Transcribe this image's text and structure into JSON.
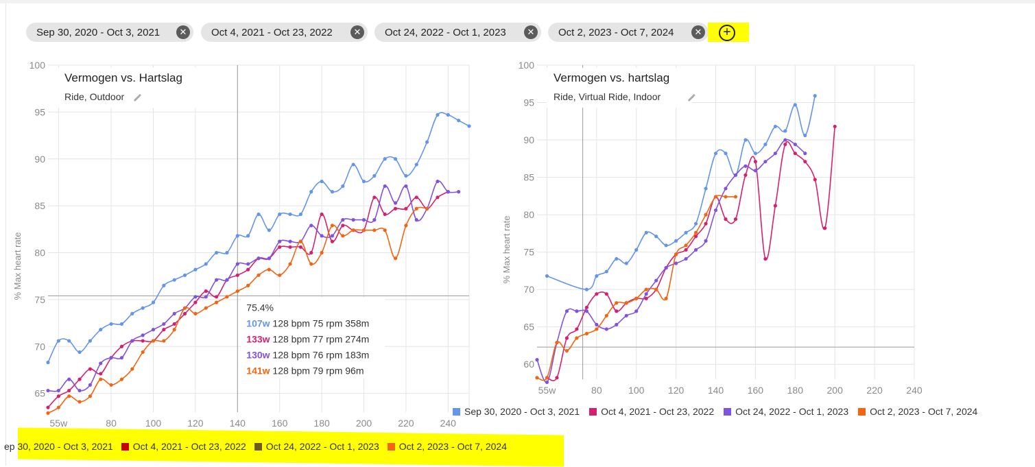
{
  "filters": {
    "chips": [
      {
        "label": "Sep 30, 2020 - Oct 3, 2021"
      },
      {
        "label": "Oct 4, 2021 - Oct 23, 2022"
      },
      {
        "label": "Oct 24, 2022 - Oct 1, 2023"
      },
      {
        "label": "Oct 2, 2023 - Oct 7, 2024"
      }
    ],
    "close_glyph": "✕",
    "add_glyph": "+",
    "add_icon": "plus-circle-icon"
  },
  "colors": {
    "series": [
      "#6495ed",
      "#d6206e",
      "#8052e0",
      "#f26512"
    ],
    "grid": "#e4e4e4",
    "axis_text": "#8a8a8a",
    "highlight": "#ffff00",
    "bottom_legend_swatches": [
      "#ffff00",
      "#cc0000",
      "#6b5a22",
      "#f26512"
    ]
  },
  "edit_icon": "pencil-icon",
  "chart_data": [
    {
      "type": "line",
      "title": "Vermogen vs. Hartslag",
      "subtitle": "Ride, Outdoor",
      "ylabel": "% Max heart rate",
      "xlabel": "",
      "xlim": [
        50,
        250
      ],
      "ylim": [
        63,
        100
      ],
      "xticks": [
        {
          "value": 55,
          "label": "55w"
        },
        {
          "value": 80,
          "label": "80"
        },
        {
          "value": 100,
          "label": "100"
        },
        {
          "value": 120,
          "label": "120"
        },
        {
          "value": 140,
          "label": "140"
        },
        {
          "value": 160,
          "label": "160"
        },
        {
          "value": 180,
          "label": "180"
        },
        {
          "value": 200,
          "label": "200"
        },
        {
          "value": 220,
          "label": "220"
        },
        {
          "value": 240,
          "label": "240"
        }
      ],
      "yticks": [
        {
          "value": 65,
          "label": "65"
        },
        {
          "value": 70,
          "label": "70"
        },
        {
          "value": 75,
          "label": "75"
        },
        {
          "value": 80,
          "label": "80"
        },
        {
          "value": 85,
          "label": "85"
        },
        {
          "value": 90,
          "label": "90"
        },
        {
          "value": 95,
          "label": "95"
        },
        {
          "value": 100,
          "label": "100"
        }
      ],
      "grid": true,
      "crosshair": {
        "x": 140,
        "y": 75.4
      },
      "tooltip": {
        "header": "75.4%",
        "rows": [
          {
            "watts": "107w",
            "rest": "128 bpm 75 rpm 358m"
          },
          {
            "watts": "133w",
            "rest": "128 bpm 77 rpm 274m"
          },
          {
            "watts": "130w",
            "rest": "128 bpm 76 rpm 183m"
          },
          {
            "watts": "141w",
            "rest": "128 bpm 79 rpm 96m"
          }
        ]
      },
      "series": [
        {
          "name": "Sep 30, 2020 - Oct 3, 2021",
          "x": [
            50,
            55,
            60,
            65,
            70,
            75,
            80,
            85,
            90,
            95,
            100,
            105,
            110,
            115,
            120,
            125,
            130,
            135,
            140,
            145,
            150,
            155,
            160,
            165,
            170,
            175,
            180,
            185,
            190,
            195,
            200,
            205,
            210,
            215,
            220,
            225,
            230,
            235,
            240,
            245,
            250
          ],
          "y": [
            68.3,
            70.6,
            70.6,
            69.4,
            70.6,
            71.8,
            72.4,
            72.4,
            73.5,
            74.1,
            74.7,
            76.5,
            77.1,
            77.6,
            78.2,
            78.8,
            80.0,
            80.0,
            81.8,
            81.8,
            84.1,
            82.4,
            84.1,
            84.1,
            84.1,
            86.5,
            87.6,
            86.5,
            87.1,
            89.4,
            87.6,
            88.2,
            90.0,
            90.0,
            88.2,
            89.4,
            91.8,
            94.7,
            94.7,
            94.1,
            93.5
          ]
        },
        {
          "name": "Oct 4, 2021 - Oct 23, 2022",
          "x": [
            50,
            55,
            60,
            65,
            70,
            75,
            80,
            85,
            90,
            95,
            100,
            105,
            110,
            115,
            120,
            125,
            130,
            135,
            140,
            145,
            150,
            155,
            160,
            165,
            170,
            175,
            180,
            185,
            190,
            195,
            200,
            205,
            210,
            215,
            220,
            225,
            230,
            235,
            240
          ],
          "y": [
            63.5,
            64.7,
            65.3,
            66.5,
            67.6,
            67.1,
            68.8,
            70.0,
            70.6,
            70.6,
            70.6,
            71.8,
            72.4,
            73.5,
            74.7,
            75.9,
            75.3,
            77.1,
            77.6,
            78.2,
            79.4,
            79.4,
            80.6,
            80.6,
            80.6,
            80.0,
            84.1,
            81.2,
            82.9,
            82.4,
            82.4,
            85.9,
            84.1,
            84.7,
            84.7,
            85.9,
            84.7,
            85.9,
            86.5
          ]
        },
        {
          "name": "Oct 24, 2022 - Oct 1, 2023",
          "x": [
            50,
            55,
            60,
            65,
            70,
            75,
            80,
            85,
            90,
            95,
            100,
            105,
            110,
            115,
            120,
            125,
            130,
            135,
            140,
            145,
            150,
            155,
            160,
            165,
            170,
            175,
            180,
            185,
            190,
            195,
            200,
            205,
            210,
            215,
            220,
            225,
            230,
            235,
            240,
            245
          ],
          "y": [
            65.3,
            65.3,
            66.5,
            65.3,
            65.9,
            68.2,
            68.8,
            68.8,
            70.6,
            71.2,
            71.8,
            72.4,
            73.5,
            74.1,
            75.3,
            75.3,
            77.1,
            77.1,
            78.8,
            78.8,
            79.4,
            79.4,
            81.2,
            81.2,
            81.2,
            82.9,
            81.8,
            81.8,
            83.5,
            83.5,
            83.5,
            83.5,
            87.1,
            85.3,
            87.1,
            83.5,
            84.7,
            87.6,
            86.5,
            86.5
          ]
        },
        {
          "name": "Oct 2, 2023 - Oct 7, 2024",
          "x": [
            50,
            55,
            60,
            65,
            70,
            75,
            80,
            85,
            90,
            95,
            100,
            105,
            110,
            115,
            120,
            125,
            130,
            135,
            140,
            145,
            150,
            155,
            160,
            165,
            170,
            175,
            180,
            185,
            190,
            195,
            200,
            205,
            210,
            215,
            220,
            225,
            230
          ],
          "y": [
            62.9,
            63.5,
            64.7,
            64.1,
            64.7,
            66.5,
            65.9,
            66.5,
            67.6,
            69.4,
            70.6,
            70.6,
            71.8,
            74.1,
            73.5,
            74.1,
            74.7,
            75.3,
            75.9,
            76.5,
            77.6,
            78.2,
            77.6,
            78.8,
            81.2,
            78.8,
            80.0,
            82.9,
            81.8,
            82.4,
            82.4,
            82.4,
            82.4,
            79.4,
            82.9,
            84.7,
            84.7
          ]
        }
      ]
    },
    {
      "type": "line",
      "title": "Vermogen vs. hartslag",
      "subtitle": "Ride, Virtual Ride, Indoor",
      "ylabel": "% Max heart rate",
      "xlabel": "",
      "xlim": [
        50,
        240
      ],
      "ylim": [
        58,
        100
      ],
      "xticks": [
        {
          "value": 55,
          "label": "55w"
        },
        {
          "value": 80,
          "label": "80"
        },
        {
          "value": 100,
          "label": "100"
        },
        {
          "value": 120,
          "label": "120"
        },
        {
          "value": 140,
          "label": "140"
        },
        {
          "value": 160,
          "label": "160"
        },
        {
          "value": 180,
          "label": "180"
        },
        {
          "value": 200,
          "label": "200"
        },
        {
          "value": 220,
          "label": "220"
        },
        {
          "value": 240,
          "label": "240"
        }
      ],
      "yticks": [
        {
          "value": 60,
          "label": "60"
        },
        {
          "value": 65,
          "label": "65"
        },
        {
          "value": 70,
          "label": "70"
        },
        {
          "value": 75,
          "label": "75"
        },
        {
          "value": 80,
          "label": "80"
        },
        {
          "value": 85,
          "label": "85"
        },
        {
          "value": 90,
          "label": "90"
        },
        {
          "value": 95,
          "label": "95"
        },
        {
          "value": 100,
          "label": "100"
        }
      ],
      "grid": true,
      "crosshair": {
        "x": 73,
        "y": 62.3
      },
      "legend": "bottom",
      "series": [
        {
          "name": "Sep 30, 2020 - Oct 3, 2021",
          "x": [
            55,
            75,
            80,
            85,
            90,
            95,
            100,
            105,
            110,
            115,
            120,
            125,
            130,
            135,
            140,
            145,
            150,
            155,
            160,
            165,
            170,
            175,
            180,
            185,
            190
          ],
          "y": [
            71.8,
            70.0,
            71.8,
            72.4,
            74.1,
            73.5,
            75.3,
            77.6,
            77.1,
            75.9,
            76.5,
            77.6,
            78.8,
            83.5,
            88.2,
            88.2,
            85.3,
            90.0,
            88.2,
            89.4,
            91.8,
            91.2,
            94.7,
            90.6,
            95.9
          ]
        },
        {
          "name": "Oct 4, 2021 - Oct 23, 2022",
          "x": [
            55,
            60,
            65,
            70,
            75,
            80,
            85,
            90,
            95,
            100,
            105,
            110,
            115,
            120,
            125,
            130,
            135,
            140,
            145,
            150,
            155,
            160,
            165,
            170,
            175,
            180,
            185,
            190,
            195,
            200
          ],
          "y": [
            58.2,
            58.2,
            63.5,
            64.7,
            67.6,
            69.4,
            69.4,
            67.1,
            68.2,
            68.8,
            68.8,
            70.0,
            72.9,
            74.7,
            75.3,
            77.1,
            78.8,
            82.4,
            79.4,
            79.4,
            85.3,
            87.1,
            74.1,
            81.2,
            89.4,
            88.2,
            87.1,
            84.7,
            78.2,
            91.8
          ]
        },
        {
          "name": "Oct 24, 2022 - Oct 1, 2023",
          "x": [
            50,
            55,
            60,
            65,
            70,
            75,
            80,
            85,
            90,
            95,
            100,
            105,
            110,
            115,
            120,
            125,
            130,
            135,
            140,
            145,
            150,
            155,
            160,
            165,
            170,
            175,
            180,
            185
          ],
          "y": [
            60.6,
            57.6,
            62.9,
            67.1,
            67.1,
            67.1,
            65.3,
            64.7,
            65.3,
            66.5,
            67.1,
            69.4,
            71.2,
            72.9,
            73.5,
            74.1,
            75.3,
            76.5,
            80.6,
            83.5,
            85.3,
            86.5,
            85.9,
            87.1,
            88.2,
            90.0,
            89.4,
            88.2
          ]
        },
        {
          "name": "Oct 2, 2023 - Oct 7, 2024",
          "x": [
            50,
            55,
            60,
            65,
            70,
            75,
            80,
            85,
            90,
            95,
            100,
            105,
            110,
            115,
            120,
            125,
            130,
            135,
            140,
            145,
            150
          ],
          "y": [
            58.2,
            58.2,
            62.9,
            61.8,
            63.5,
            64.1,
            64.7,
            66.5,
            68.2,
            68.2,
            68.8,
            70.0,
            70.0,
            68.8,
            74.7,
            75.9,
            77.6,
            80.0,
            82.4,
            82.4,
            82.4
          ]
        }
      ]
    }
  ],
  "legend_bottom_right": {
    "items": [
      {
        "label": "Sep 30, 2020 - Oct 3, 2021"
      },
      {
        "label": "Oct 4, 2021 - Oct 23, 2022"
      },
      {
        "label": "Oct 24, 2022 - Oct 1, 2023"
      },
      {
        "label": "Oct 2, 2023 - Oct 7, 2024"
      }
    ]
  },
  "legend_bottom_left": {
    "items": [
      {
        "label": "ep 30, 2020 - Oct 3, 2021"
      },
      {
        "label": "Oct 4, 2021 - Oct 23, 2022"
      },
      {
        "label": "Oct 24, 2022 - Oct 1, 2023"
      },
      {
        "label": "Oct 2, 2023 - Oct 7, 2024"
      }
    ]
  }
}
